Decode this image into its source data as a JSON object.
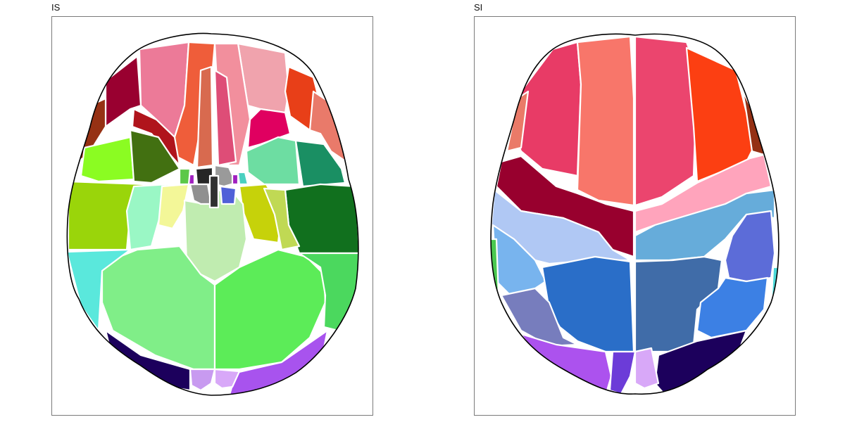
{
  "panels": [
    {
      "title": "IS",
      "regions": [
        {
          "name": "region-superior-frontal-left",
          "color": "#ec7a98"
        },
        {
          "name": "region-superior-frontal-right",
          "color": "#f0a3ad"
        },
        {
          "name": "region-medial-orbitofrontal-left",
          "color": "#ef5d3a"
        },
        {
          "name": "region-medial-orbitofrontal-right",
          "color": "#f28f9d"
        },
        {
          "name": "region-gyrus-rectus-left",
          "color": "#d86a4f"
        },
        {
          "name": "region-gyrus-rectus-right",
          "color": "#de4d77"
        },
        {
          "name": "region-middle-frontal-left",
          "color": "#990030"
        },
        {
          "name": "region-middle-frontal-right",
          "color": "#e83f18"
        },
        {
          "name": "region-inferior-frontal-left",
          "color": "#b0141c"
        },
        {
          "name": "region-inferior-frontal-right",
          "color": "#e00060"
        },
        {
          "name": "region-lateral-orbital-left",
          "color": "#963114"
        },
        {
          "name": "region-lateral-orbital-right",
          "color": "#e97a6a"
        },
        {
          "name": "region-insula-left",
          "color": "#8bfc22"
        },
        {
          "name": "region-insula-left-inner",
          "color": "#427011"
        },
        {
          "name": "region-insula-right",
          "color": "#6ddda2"
        },
        {
          "name": "region-insula-right-inner",
          "color": "#1a8f63"
        },
        {
          "name": "region-temporal-pole-left",
          "color": "#9ad50a"
        },
        {
          "name": "region-temporal-pole-right",
          "color": "#11701e"
        },
        {
          "name": "region-parahippocampal-left",
          "color": "#9af7c5"
        },
        {
          "name": "region-fusiform-left",
          "color": "#f3f798"
        },
        {
          "name": "region-fusiform-right",
          "color": "#c6d20a"
        },
        {
          "name": "region-parahippocampal-right",
          "color": "#c0d954"
        },
        {
          "name": "region-brainstem",
          "color": "#c0ecb0"
        },
        {
          "name": "region-cerebellum-left",
          "color": "#80ee88"
        },
        {
          "name": "region-cerebellum-right",
          "color": "#5cec58"
        },
        {
          "name": "region-inferior-temporal-left",
          "color": "#5ae8dc"
        },
        {
          "name": "region-inferior-temporal-right",
          "color": "#4bd85e"
        },
        {
          "name": "region-occipital-left",
          "color": "#1c005c"
        },
        {
          "name": "region-occipital-right",
          "color": "#a853ee"
        },
        {
          "name": "region-calcarine-left",
          "color": "#c89af0"
        },
        {
          "name": "region-calcarine-right",
          "color": "#d8a8f8"
        },
        {
          "name": "region-hypothalamus",
          "color": "#262626"
        },
        {
          "name": "region-amygdala-left",
          "color": "#909090"
        },
        {
          "name": "region-amygdala-right",
          "color": "#9a9a9a"
        },
        {
          "name": "region-thalamus-right",
          "color": "#5060d8"
        },
        {
          "name": "region-mammillary-left",
          "color": "#a020c0"
        },
        {
          "name": "region-mammillary-right",
          "color": "#a020c0"
        },
        {
          "name": "region-ventricle-midline",
          "color": "#303030"
        },
        {
          "name": "region-olfactory-left",
          "color": "#5cc848"
        },
        {
          "name": "region-olfactory-right",
          "color": "#4ad0c0"
        }
      ]
    },
    {
      "title": "SI",
      "regions": [
        {
          "name": "region-superior-frontal-left",
          "color": "#e83b66"
        },
        {
          "name": "region-superior-frontal-medial-left",
          "color": "#f8766a"
        },
        {
          "name": "region-superior-frontal-medial-right",
          "color": "#eb456e"
        },
        {
          "name": "region-middle-frontal-right",
          "color": "#fc3f12"
        },
        {
          "name": "region-frontal-pole-left",
          "color": "#ea7a68"
        },
        {
          "name": "region-frontal-pole-right",
          "color": "#943014"
        },
        {
          "name": "region-precentral-left",
          "color": "#98002e"
        },
        {
          "name": "region-precentral-right",
          "color": "#ffa4bc"
        },
        {
          "name": "region-postcentral-left",
          "color": "#b0c8f4"
        },
        {
          "name": "region-postcentral-right",
          "color": "#66acda"
        },
        {
          "name": "region-supramarginal-left",
          "color": "#78b4ee"
        },
        {
          "name": "region-supramarginal-right",
          "color": "#5c6cd8"
        },
        {
          "name": "region-superior-parietal-left",
          "color": "#2a6ec8"
        },
        {
          "name": "region-superior-parietal-right",
          "color": "#406ca8"
        },
        {
          "name": "region-angular-left",
          "color": "#777dbd"
        },
        {
          "name": "region-angular-right",
          "color": "#3c80e4"
        },
        {
          "name": "region-occipital-left",
          "color": "#ac52ee"
        },
        {
          "name": "region-occipital-right",
          "color": "#1c005c"
        },
        {
          "name": "region-cuneus-left",
          "color": "#6c3cd8"
        },
        {
          "name": "region-cuneus-right",
          "color": "#d8a8f8"
        },
        {
          "name": "region-temporal-edge-left",
          "color": "#4ac850"
        },
        {
          "name": "region-temporal-edge-right",
          "color": "#4ad8d8"
        }
      ]
    }
  ]
}
